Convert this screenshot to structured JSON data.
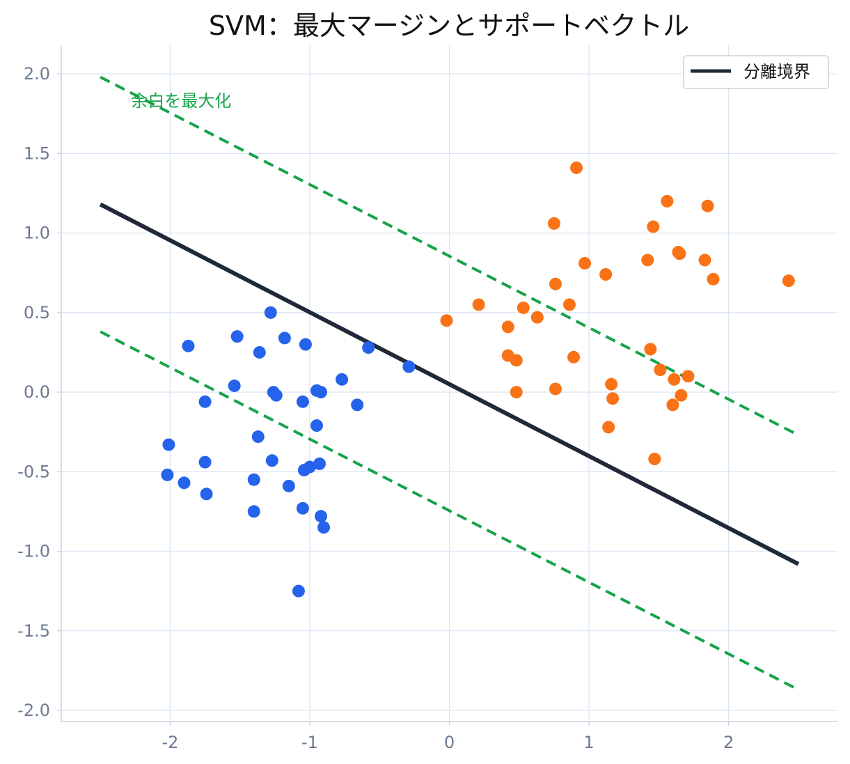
{
  "chart_data": {
    "type": "scatter",
    "title": "SVM：最大マージンとサポートベクトル",
    "xlabel": "",
    "ylabel": "",
    "xlim": [
      -2.78,
      2.78
    ],
    "ylim": [
      -2.07,
      2.18
    ],
    "grid": true,
    "legend_placement": "top-right",
    "x_ticks": [
      -2,
      -1,
      0,
      1,
      2
    ],
    "x_tick_labels": [
      "-2",
      "-1",
      "0",
      "1",
      "2"
    ],
    "y_ticks": [
      -2.0,
      -1.5,
      -1.0,
      -0.5,
      0.0,
      0.5,
      1.0,
      1.5,
      2.0
    ],
    "y_tick_labels": [
      "-2.0",
      "-1.5",
      "-1.0",
      "-0.5",
      "0.0",
      "0.5",
      "1.0",
      "1.5",
      "2.0"
    ],
    "colors": {
      "class_a": "#2563eb",
      "class_b": "#f97316",
      "boundary": "#1f2937",
      "margin": "#16a34a"
    },
    "boundary": {
      "name": "分離境界",
      "x": [
        -2.5,
        2.5
      ],
      "y": [
        1.18,
        -1.08
      ]
    },
    "margins": [
      {
        "x": [
          -2.5,
          2.5
        ],
        "y": [
          1.98,
          -0.27
        ]
      },
      {
        "x": [
          -2.5,
          2.5
        ],
        "y": [
          0.38,
          -1.87
        ]
      }
    ],
    "annotation": {
      "text": "余白を最大化",
      "x": -2.28,
      "y": 1.83
    },
    "series": [
      {
        "color": "#2563eb",
        "points": [
          [
            -1.28,
            0.5
          ],
          [
            -1.52,
            0.35
          ],
          [
            -1.36,
            0.25
          ],
          [
            -1.87,
            0.29
          ],
          [
            -1.18,
            0.34
          ],
          [
            -1.03,
            0.3
          ],
          [
            -0.58,
            0.28
          ],
          [
            -0.29,
            0.16
          ],
          [
            -0.77,
            0.08
          ],
          [
            -1.54,
            0.04
          ],
          [
            -1.26,
            0.0
          ],
          [
            -1.24,
            -0.02
          ],
          [
            -1.75,
            -0.06
          ],
          [
            -1.05,
            -0.06
          ],
          [
            -0.95,
            0.01
          ],
          [
            -0.92,
            0.0
          ],
          [
            -0.66,
            -0.08
          ],
          [
            -0.95,
            -0.21
          ],
          [
            -1.37,
            -0.28
          ],
          [
            -2.01,
            -0.33
          ],
          [
            -1.75,
            -0.44
          ],
          [
            -1.27,
            -0.43
          ],
          [
            -0.93,
            -0.45
          ],
          [
            -1.04,
            -0.49
          ],
          [
            -1.0,
            -0.47
          ],
          [
            -2.02,
            -0.52
          ],
          [
            -1.9,
            -0.57
          ],
          [
            -1.4,
            -0.55
          ],
          [
            -1.15,
            -0.59
          ],
          [
            -1.74,
            -0.64
          ],
          [
            -1.05,
            -0.73
          ],
          [
            -1.4,
            -0.75
          ],
          [
            -0.92,
            -0.78
          ],
          [
            -0.9,
            -0.85
          ],
          [
            -1.08,
            -1.25
          ]
        ]
      },
      {
        "color": "#f97316",
        "points": [
          [
            0.91,
            1.41
          ],
          [
            1.56,
            1.2
          ],
          [
            1.85,
            1.17
          ],
          [
            0.75,
            1.06
          ],
          [
            1.46,
            1.04
          ],
          [
            1.64,
            0.88
          ],
          [
            1.65,
            0.87
          ],
          [
            0.97,
            0.81
          ],
          [
            1.42,
            0.83
          ],
          [
            1.83,
            0.83
          ],
          [
            1.12,
            0.74
          ],
          [
            1.89,
            0.71
          ],
          [
            2.43,
            0.7
          ],
          [
            0.76,
            0.68
          ],
          [
            0.21,
            0.55
          ],
          [
            0.53,
            0.53
          ],
          [
            0.86,
            0.55
          ],
          [
            -0.02,
            0.45
          ],
          [
            0.63,
            0.47
          ],
          [
            0.42,
            0.41
          ],
          [
            1.44,
            0.27
          ],
          [
            0.42,
            0.23
          ],
          [
            0.48,
            0.2
          ],
          [
            0.89,
            0.22
          ],
          [
            1.51,
            0.14
          ],
          [
            1.71,
            0.1
          ],
          [
            1.61,
            0.08
          ],
          [
            1.16,
            0.05
          ],
          [
            0.48,
            0.0
          ],
          [
            0.76,
            0.02
          ],
          [
            1.66,
            -0.02
          ],
          [
            1.17,
            -0.04
          ],
          [
            1.6,
            -0.08
          ],
          [
            1.14,
            -0.22
          ],
          [
            1.47,
            -0.42
          ]
        ]
      }
    ]
  }
}
